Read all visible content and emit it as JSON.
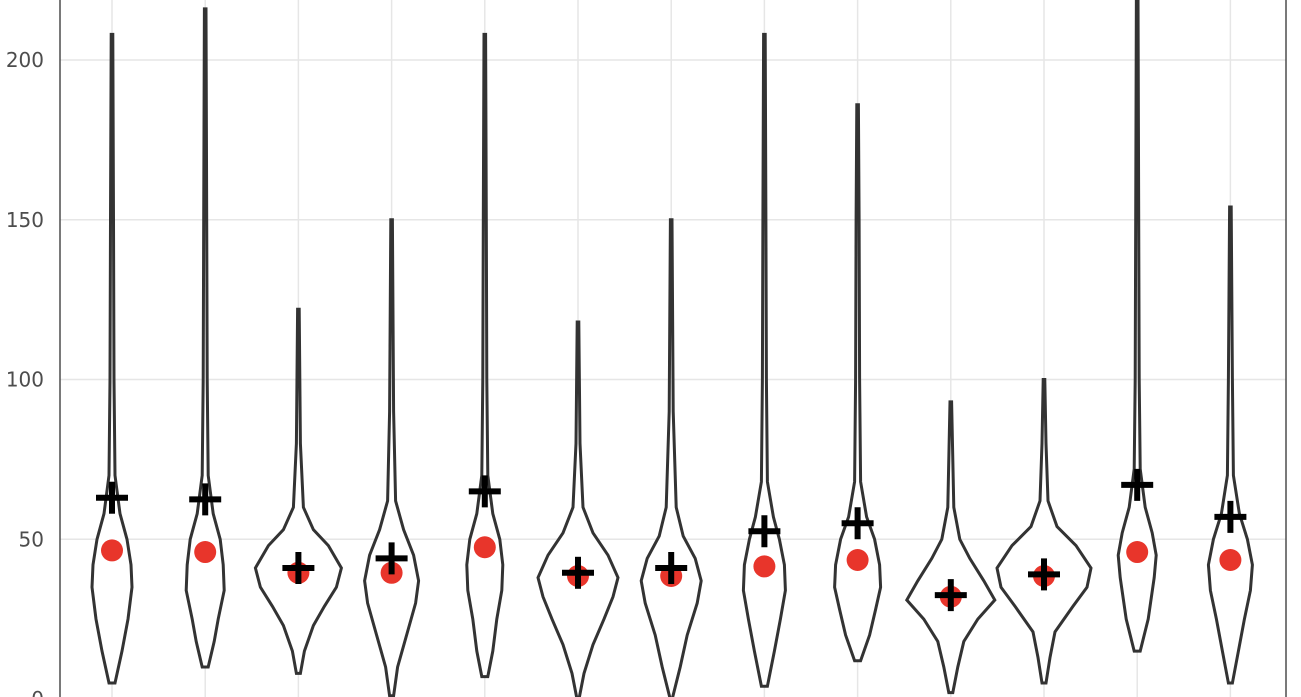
{
  "chart_data": {
    "type": "violin",
    "title": "",
    "xlabel": "",
    "ylabel": "",
    "ylim": [
      0,
      220
    ],
    "yticks": [
      0,
      50,
      100,
      150,
      200
    ],
    "grid": true,
    "colors": {
      "violin_stroke": "#333333",
      "median_marker": "#e8352b",
      "mean_marker": "#000000"
    },
    "series": [
      {
        "min": 5,
        "max": 208,
        "median": 46.5,
        "mean": 63,
        "profile": [
          [
            5,
            3
          ],
          [
            15,
            10
          ],
          [
            25,
            16
          ],
          [
            35,
            20
          ],
          [
            42,
            19
          ],
          [
            50,
            15
          ],
          [
            58,
            8
          ],
          [
            70,
            3
          ],
          [
            100,
            2
          ],
          [
            150,
            1.5
          ],
          [
            208,
            0.8
          ]
        ]
      },
      {
        "min": 10,
        "max": 216,
        "median": 46,
        "mean": 62.5,
        "profile": [
          [
            10,
            3
          ],
          [
            18,
            9
          ],
          [
            25,
            13
          ],
          [
            34,
            19
          ],
          [
            42,
            18
          ],
          [
            50,
            15
          ],
          [
            58,
            8
          ],
          [
            70,
            3
          ],
          [
            100,
            2
          ],
          [
            150,
            1.5
          ],
          [
            216,
            0.8
          ]
        ]
      },
      {
        "min": 8,
        "max": 122,
        "median": 39.5,
        "mean": 41,
        "profile": [
          [
            8,
            2
          ],
          [
            15,
            6
          ],
          [
            23,
            15
          ],
          [
            29,
            26
          ],
          [
            35,
            38
          ],
          [
            41,
            43
          ],
          [
            48,
            30
          ],
          [
            53,
            15
          ],
          [
            60,
            5
          ],
          [
            80,
            2
          ],
          [
            122,
            0.8
          ]
        ]
      },
      {
        "min": 1,
        "max": 150,
        "median": 39.5,
        "mean": 44,
        "profile": [
          [
            1,
            2
          ],
          [
            10,
            6
          ],
          [
            20,
            15
          ],
          [
            30,
            24
          ],
          [
            37,
            27
          ],
          [
            45,
            22
          ],
          [
            53,
            12
          ],
          [
            62,
            4
          ],
          [
            90,
            2
          ],
          [
            150,
            0.8
          ]
        ]
      },
      {
        "min": 7,
        "max": 208,
        "median": 47.5,
        "mean": 65,
        "profile": [
          [
            7,
            3
          ],
          [
            15,
            8
          ],
          [
            25,
            12
          ],
          [
            34,
            17
          ],
          [
            42,
            18
          ],
          [
            50,
            15
          ],
          [
            58,
            8
          ],
          [
            70,
            3
          ],
          [
            100,
            2
          ],
          [
            150,
            1.5
          ],
          [
            208,
            0.8
          ]
        ]
      },
      {
        "min": 0,
        "max": 118,
        "median": 38.5,
        "mean": 39.5,
        "profile": [
          [
            0,
            1
          ],
          [
            8,
            6
          ],
          [
            17,
            15
          ],
          [
            25,
            26
          ],
          [
            32,
            35
          ],
          [
            38,
            40
          ],
          [
            45,
            30
          ],
          [
            52,
            15
          ],
          [
            60,
            5
          ],
          [
            80,
            2
          ],
          [
            118,
            0.8
          ]
        ]
      },
      {
        "min": 0,
        "max": 150,
        "median": 38.5,
        "mean": 41,
        "profile": [
          [
            0,
            1
          ],
          [
            10,
            9
          ],
          [
            20,
            16
          ],
          [
            30,
            26
          ],
          [
            37,
            30
          ],
          [
            44,
            24
          ],
          [
            51,
            12
          ],
          [
            60,
            5
          ],
          [
            90,
            2
          ],
          [
            150,
            0.8
          ]
        ]
      },
      {
        "min": 4,
        "max": 208,
        "median": 41.5,
        "mean": 52.5,
        "profile": [
          [
            4,
            3
          ],
          [
            15,
            10
          ],
          [
            25,
            16
          ],
          [
            34,
            21
          ],
          [
            42,
            20
          ],
          [
            50,
            15
          ],
          [
            57,
            9
          ],
          [
            68,
            3
          ],
          [
            100,
            2
          ],
          [
            150,
            1.5
          ],
          [
            208,
            0.8
          ]
        ]
      },
      {
        "min": 12,
        "max": 186,
        "median": 43.5,
        "mean": 55,
        "profile": [
          [
            12,
            3
          ],
          [
            20,
            12
          ],
          [
            28,
            18
          ],
          [
            35,
            23
          ],
          [
            42,
            22
          ],
          [
            50,
            17
          ],
          [
            57,
            9
          ],
          [
            68,
            3
          ],
          [
            100,
            2
          ],
          [
            150,
            1.5
          ],
          [
            186,
            0.8
          ]
        ]
      },
      {
        "min": 2,
        "max": 93,
        "median": 32,
        "mean": 32.5,
        "profile": [
          [
            2,
            2
          ],
          [
            10,
            7
          ],
          [
            18,
            13
          ],
          [
            25,
            27
          ],
          [
            31,
            44
          ],
          [
            37,
            33
          ],
          [
            44,
            19
          ],
          [
            50,
            9
          ],
          [
            60,
            3
          ],
          [
            93,
            0.8
          ]
        ]
      },
      {
        "min": 5,
        "max": 100,
        "median": 38.5,
        "mean": 39,
        "profile": [
          [
            5,
            2
          ],
          [
            13,
            6
          ],
          [
            21,
            11
          ],
          [
            29,
            29
          ],
          [
            35,
            43
          ],
          [
            41,
            47
          ],
          [
            48,
            32
          ],
          [
            54,
            13
          ],
          [
            62,
            4
          ],
          [
            80,
            2
          ],
          [
            100,
            0.8
          ]
        ]
      },
      {
        "min": 15,
        "max": 222,
        "median": 46,
        "mean": 67,
        "profile": [
          [
            15,
            3
          ],
          [
            25,
            11
          ],
          [
            38,
            17
          ],
          [
            45,
            19
          ],
          [
            52,
            15
          ],
          [
            60,
            8
          ],
          [
            72,
            3
          ],
          [
            100,
            2
          ],
          [
            150,
            1.5
          ],
          [
            222,
            0.8
          ]
        ]
      },
      {
        "min": 5,
        "max": 154,
        "median": 43.5,
        "mean": 57,
        "profile": [
          [
            5,
            2
          ],
          [
            15,
            8
          ],
          [
            25,
            14
          ],
          [
            34,
            20
          ],
          [
            42,
            22
          ],
          [
            50,
            17
          ],
          [
            58,
            9
          ],
          [
            70,
            3
          ],
          [
            100,
            2
          ],
          [
            154,
            0.8
          ]
        ]
      }
    ]
  }
}
